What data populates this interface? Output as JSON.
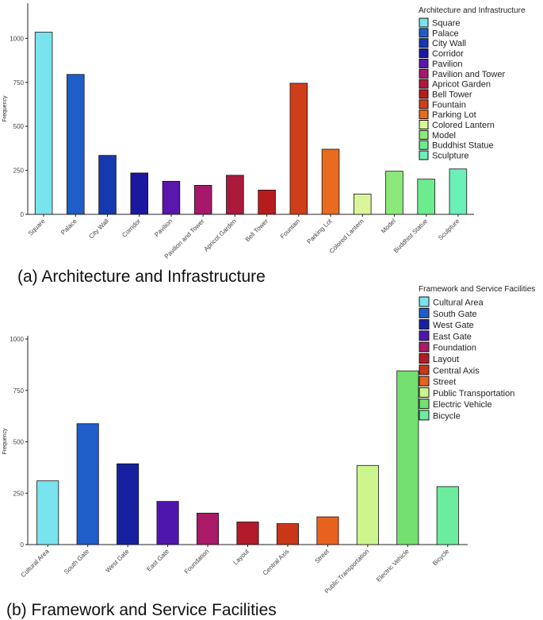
{
  "chart_data": [
    {
      "type": "bar",
      "caption": "(a) Architecture and Infrastructure",
      "legend_title": "Architecture and Infrastructure",
      "ylabel": "Frequency",
      "xlabel": "",
      "ylim": [
        0,
        1200
      ],
      "yticks": [
        0,
        250,
        500,
        750,
        1000
      ],
      "legend_position": "top-right",
      "categories": [
        "Square",
        "Palace",
        "City Wall",
        "Corridor",
        "Pavilion",
        "Pavilion and Tower",
        "Apricot Garden",
        "Bell Tower",
        "Fountain",
        "Parking Lot",
        "Colored Lantern",
        "Model",
        "Buddhist Statue",
        "Sculpture"
      ],
      "values": [
        1035,
        795,
        335,
        235,
        188,
        165,
        222,
        138,
        745,
        370,
        115,
        245,
        200,
        258
      ],
      "colors": [
        "#79e3ee",
        "#1f5dc9",
        "#1639b0",
        "#1c17a0",
        "#5a16ad",
        "#a8186a",
        "#ab1a3c",
        "#b71c1c",
        "#cf3e1b",
        "#e86b1f",
        "#dcf59a",
        "#8ce87a",
        "#6cec8e",
        "#6cf0b8"
      ]
    },
    {
      "type": "bar",
      "caption": "(b) Framework and Service Facilities",
      "legend_title": "Framework and Service Facilities",
      "ylabel": "Frequency",
      "xlabel": "",
      "ylim": [
        0,
        1000
      ],
      "yticks": [
        0,
        250,
        500,
        750,
        1000
      ],
      "legend_position": "top-right",
      "categories": [
        "Cultural Area",
        "South Gate",
        "West Gate",
        "East Gate",
        "Foundation",
        "Layout",
        "Central Axis",
        "Street",
        "Public Transportation",
        "Electric Vehicle",
        "Bicycle"
      ],
      "values": [
        310,
        588,
        393,
        210,
        153,
        110,
        102,
        135,
        385,
        845,
        282
      ],
      "colors": [
        "#79e3ee",
        "#1f5dc9",
        "#1721a0",
        "#4f16ad",
        "#ab1a68",
        "#b31a2a",
        "#c93618",
        "#e8621f",
        "#cdf58e",
        "#74e070",
        "#6cec9e"
      ]
    }
  ]
}
